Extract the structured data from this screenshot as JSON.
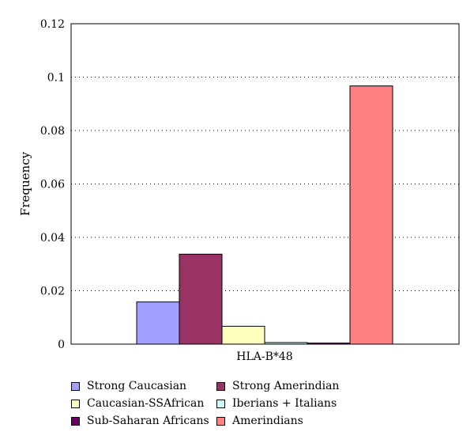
{
  "chart_data": {
    "type": "bar",
    "categories": [
      "HLA-B*48"
    ],
    "xlabel": "HLA-B*48",
    "ylabel": "Frequency",
    "ylim": [
      0,
      0.12
    ],
    "yticks": [
      "0",
      "0.02",
      "0.04",
      "0.06",
      "0.08",
      "0.1",
      "0.12"
    ],
    "grid": "horizontal dotted",
    "legend_position": "bottom",
    "series": [
      {
        "name": "Strong Caucasian",
        "values": [
          0.0158
        ],
        "color": "#a0a0ff"
      },
      {
        "name": "Strong Amerindian",
        "values": [
          0.0337
        ],
        "color": "#993366"
      },
      {
        "name": "Caucasian-SSAfrican",
        "values": [
          0.0067
        ],
        "color": "#ffffc0"
      },
      {
        "name": "Iberians + Italians",
        "values": [
          0.0006
        ],
        "color": "#ccffff"
      },
      {
        "name": "Sub-Saharan Africans",
        "values": [
          0.0004
        ],
        "color": "#660066"
      },
      {
        "name": "Amerindians",
        "values": [
          0.0967
        ],
        "color": "#ff8080"
      }
    ]
  }
}
